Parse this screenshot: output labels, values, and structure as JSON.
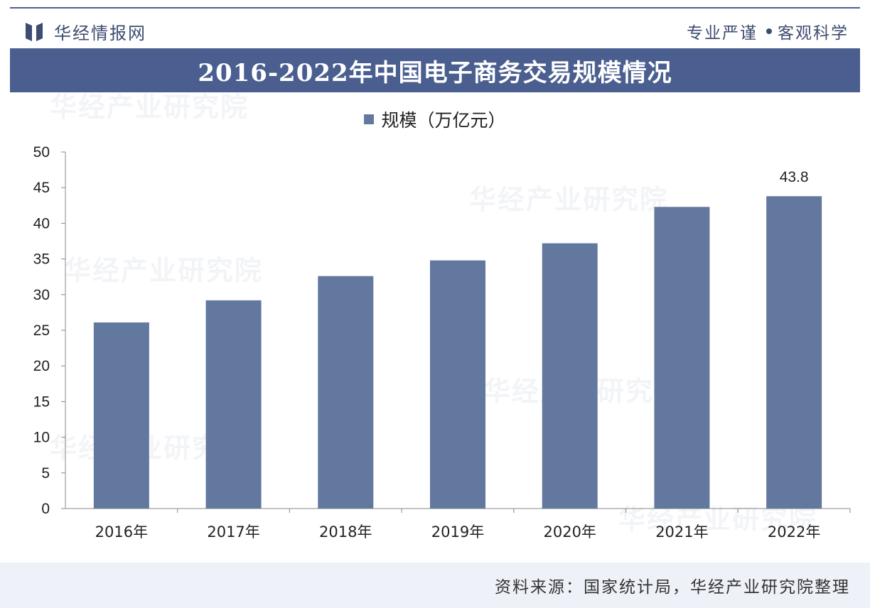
{
  "header": {
    "brand_name": "华经情报网",
    "slogan_left": "专业严谨",
    "slogan_right": "客观科学"
  },
  "title": "2016-2022年中国电子商务交易规模情况",
  "watermark": {
    "text": "华经产业研究院",
    "url": "www.huaon.com"
  },
  "chart_data": {
    "type": "bar",
    "categories": [
      "2016年",
      "2017年",
      "2018年",
      "2019年",
      "2020年",
      "2021年",
      "2022年"
    ],
    "series": [
      {
        "name": "规模（万亿元）",
        "values": [
          26.1,
          29.2,
          32.6,
          34.8,
          37.2,
          42.3,
          43.8
        ]
      }
    ],
    "data_labels": [
      null,
      null,
      null,
      null,
      null,
      null,
      "43.8"
    ],
    "ylim": [
      0,
      50
    ],
    "yticks": [
      0,
      5,
      10,
      15,
      20,
      25,
      30,
      35,
      40,
      45,
      50
    ],
    "grid": false,
    "legend": "top-center",
    "bar_color": "#62789f"
  },
  "footer": {
    "source": "资料来源：国家统计局，华经产业研究院整理"
  },
  "colors": {
    "brand": "#4a5f8f",
    "bar": "#62789f",
    "footer_bg": "#eef1f7"
  }
}
